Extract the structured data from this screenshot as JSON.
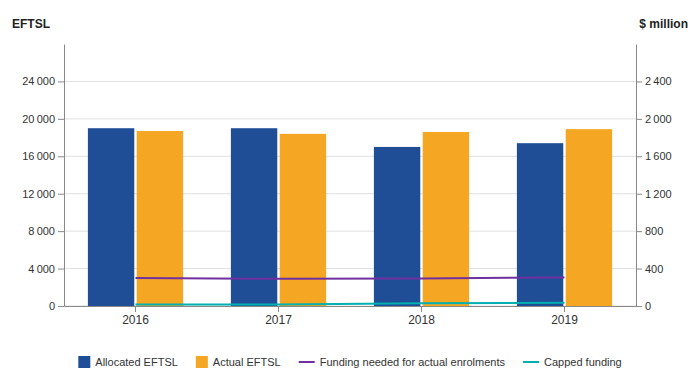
{
  "chart_data": {
    "type": "bar",
    "categories": [
      "2016",
      "2017",
      "2018",
      "2019"
    ],
    "series": [
      {
        "name": "Allocated EFTSL",
        "type": "bar",
        "color": "#1F4E96",
        "values": [
          19000,
          19000,
          17000,
          17400
        ]
      },
      {
        "name": "Actual EFTSL",
        "type": "bar",
        "color": "#F5A623",
        "values": [
          18700,
          18400,
          18600,
          18900
        ]
      },
      {
        "name": "Funding needed for actual enrolments",
        "type": "line",
        "axis": "y2",
        "color": "#7030A0",
        "values": [
          300,
          290,
          295,
          305
        ]
      },
      {
        "name": "Capped funding",
        "type": "line",
        "axis": "y2",
        "color": "#00B0B0",
        "values": [
          15,
          15,
          30,
          35
        ]
      }
    ],
    "ylabel": "EFTSL",
    "y2label": "$ million",
    "ylim": [
      0,
      28000
    ],
    "yticks": [
      0,
      {
        "value": 4000,
        "label": "4 000"
      },
      {
        "value": 8000,
        "label": "8 000"
      },
      {
        "value": 12000,
        "label": "12 000"
      },
      {
        "value": 16000,
        "label": "16 000"
      },
      {
        "value": 20000,
        "label": "20 000"
      },
      {
        "value": 24000,
        "label": "24 000"
      }
    ],
    "y2lim": [
      0,
      2800
    ],
    "y2ticks": [
      0,
      400,
      800,
      {
        "value": 1200,
        "label": "1 200"
      },
      {
        "value": 1600,
        "label": "1 600"
      },
      {
        "value": 2000,
        "label": "2 000"
      },
      {
        "value": 2400,
        "label": "2 400"
      }
    ],
    "grid": true,
    "legend": "bottom"
  }
}
